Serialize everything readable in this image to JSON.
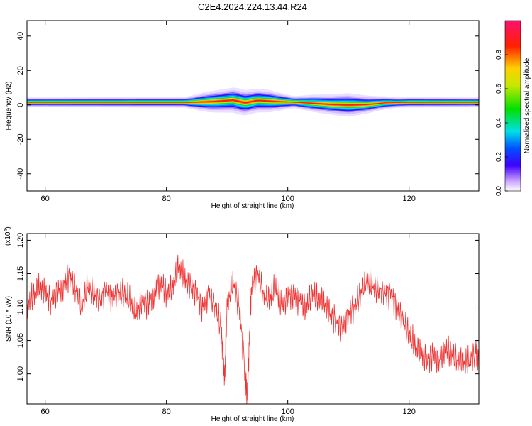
{
  "title": "C2E4.2024.224.13.44.R24",
  "chart_data": [
    {
      "type": "heatmap",
      "xlabel": "Height of straight line (km)",
      "ylabel": "Frequency (Hz)",
      "xlim": [
        57,
        131.5
      ],
      "ylim": [
        -50,
        49
      ],
      "xticks": [
        60,
        80,
        100,
        120
      ],
      "yticks": [
        40,
        20,
        0,
        -20,
        -40
      ],
      "band_center_hz": [
        [
          57.5,
          1.5
        ],
        [
          84,
          1.5
        ],
        [
          88,
          2.0
        ],
        [
          91,
          2.8
        ],
        [
          93,
          1.2
        ],
        [
          95,
          2.6
        ],
        [
          98,
          2.0
        ],
        [
          101,
          1.6
        ],
        [
          104,
          1.0
        ],
        [
          107,
          0.3
        ],
        [
          110,
          0.0
        ],
        [
          113,
          0.2
        ],
        [
          116,
          1.2
        ],
        [
          120,
          1.5
        ],
        [
          131.5,
          1.5
        ]
      ],
      "band_halfwidth_hz": [
        [
          57.5,
          1.5
        ],
        [
          83,
          1.6
        ],
        [
          87,
          3.2
        ],
        [
          92,
          4.0
        ],
        [
          97,
          3.4
        ],
        [
          101,
          1.8
        ],
        [
          104,
          2.6
        ],
        [
          110,
          3.6
        ],
        [
          115,
          2.2
        ],
        [
          118,
          1.6
        ],
        [
          131.5,
          1.5
        ]
      ],
      "colorbar": {
        "label": "Normalized spectral amplitude",
        "range": [
          0,
          1
        ],
        "ticks": [
          0.0,
          0.2,
          0.4,
          0.6,
          0.8
        ],
        "tick_labels": [
          "0.0",
          "0.2",
          "0.4",
          "0.6",
          "0.8"
        ]
      }
    },
    {
      "type": "line",
      "xlabel": "Height of straight line (km)",
      "ylabel": "SNR (10 * v/v)",
      "exponent_label": "(x10",
      "exponent": "4",
      "exponent_close": ")",
      "xlim": [
        57,
        131.5
      ],
      "ylim": [
        0.955,
        1.21
      ],
      "xticks": [
        60,
        80,
        100,
        120
      ],
      "yticks": [
        1.0,
        1.05,
        1.1,
        1.15,
        1.2
      ],
      "ytick_labels": [
        "1.00",
        "1.05",
        "1.10",
        "1.15",
        "1.20"
      ],
      "color": "#ee3333",
      "series": [
        {
          "x": [
            57,
            58,
            59,
            60,
            61,
            62,
            63,
            64,
            65,
            66,
            67,
            68,
            69,
            70,
            71,
            72,
            73,
            74,
            75,
            76,
            77,
            78,
            79,
            80,
            81,
            82,
            83,
            84,
            85,
            86,
            87,
            88,
            89,
            89.6,
            90,
            91,
            92,
            93,
            93.3,
            94,
            95,
            96,
            97,
            98,
            99,
            100,
            101,
            102,
            103,
            104,
            105,
            106,
            107,
            108,
            109,
            110,
            111,
            112,
            113,
            114,
            115,
            116,
            117,
            118,
            119,
            120,
            121,
            122,
            123,
            124,
            125,
            126,
            127,
            128,
            129,
            130,
            131,
            131.5
          ],
          "y": [
            1.1,
            1.115,
            1.13,
            1.12,
            1.11,
            1.125,
            1.13,
            1.15,
            1.125,
            1.1,
            1.13,
            1.12,
            1.11,
            1.125,
            1.115,
            1.12,
            1.12,
            1.11,
            1.09,
            1.11,
            1.105,
            1.12,
            1.14,
            1.12,
            1.13,
            1.16,
            1.14,
            1.13,
            1.12,
            1.1,
            1.12,
            1.1,
            1.07,
            0.99,
            1.1,
            1.14,
            1.1,
            1.0,
            0.96,
            1.13,
            1.15,
            1.12,
            1.11,
            1.13,
            1.1,
            1.115,
            1.12,
            1.11,
            1.1,
            1.12,
            1.11,
            1.105,
            1.09,
            1.08,
            1.07,
            1.09,
            1.1,
            1.12,
            1.14,
            1.13,
            1.125,
            1.12,
            1.12,
            1.1,
            1.08,
            1.06,
            1.04,
            1.03,
            1.02,
            1.03,
            1.02,
            1.04,
            1.03,
            1.02,
            1.015,
            1.02,
            1.03,
            1.02
          ]
        }
      ]
    }
  ]
}
